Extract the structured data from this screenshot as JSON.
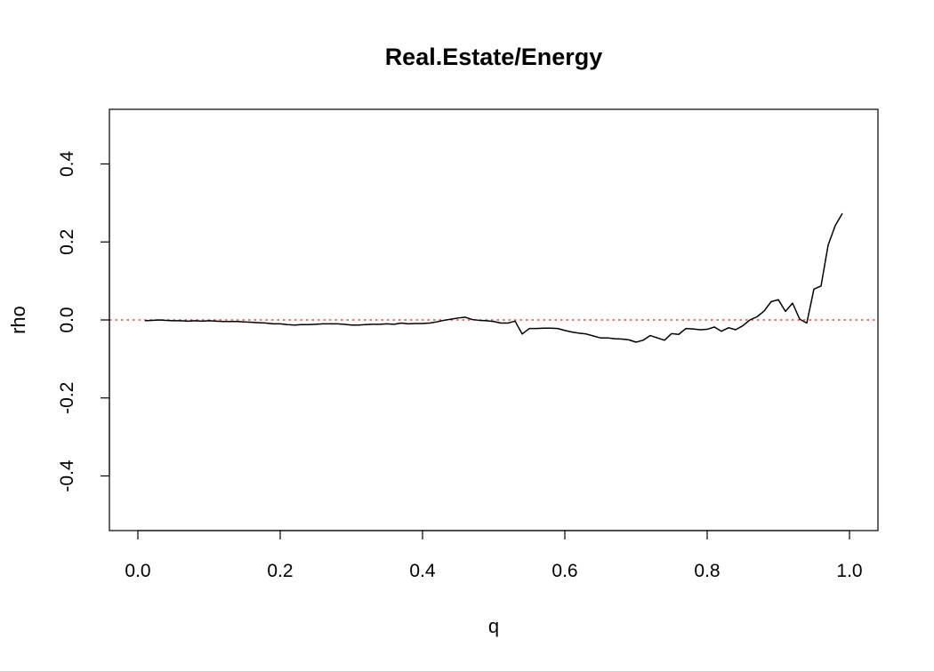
{
  "chart_data": {
    "type": "line",
    "title": "Real.Estate/Energy",
    "xlabel": "q",
    "ylabel": "rho",
    "xlim": [
      -0.04,
      1.04
    ],
    "ylim": [
      -0.54,
      0.54
    ],
    "xticks": [
      0.0,
      0.2,
      0.4,
      0.6,
      0.8,
      1.0
    ],
    "xtick_labels": [
      "0.0",
      "0.2",
      "0.4",
      "0.6",
      "0.8",
      "1.0"
    ],
    "yticks": [
      -0.4,
      -0.2,
      0.0,
      0.2,
      0.4
    ],
    "ytick_labels": [
      "-0.4",
      "-0.2",
      "0.0",
      "0.2",
      "0.4"
    ],
    "grid": false,
    "reference_line": {
      "y": 0.0,
      "color": "#e8484b",
      "style": "dotted"
    },
    "series": [
      {
        "color": "#000000",
        "x": [
          0.01,
          0.02,
          0.03,
          0.04,
          0.05,
          0.06,
          0.07,
          0.08,
          0.09,
          0.1,
          0.11,
          0.12,
          0.13,
          0.14,
          0.15,
          0.16,
          0.17,
          0.18,
          0.19,
          0.2,
          0.21,
          0.22,
          0.23,
          0.24,
          0.25,
          0.26,
          0.27,
          0.28,
          0.29,
          0.3,
          0.31,
          0.32,
          0.33,
          0.34,
          0.35,
          0.36,
          0.37,
          0.38,
          0.39,
          0.4,
          0.41,
          0.42,
          0.43,
          0.44,
          0.45,
          0.46,
          0.47,
          0.48,
          0.49,
          0.5,
          0.51,
          0.52,
          0.53,
          0.54,
          0.55,
          0.56,
          0.57,
          0.58,
          0.59,
          0.6,
          0.61,
          0.62,
          0.63,
          0.64,
          0.65,
          0.66,
          0.67,
          0.68,
          0.69,
          0.7,
          0.71,
          0.72,
          0.73,
          0.74,
          0.75,
          0.76,
          0.77,
          0.78,
          0.79,
          0.8,
          0.81,
          0.82,
          0.83,
          0.84,
          0.85,
          0.86,
          0.87,
          0.88,
          0.89,
          0.9,
          0.91,
          0.92,
          0.93,
          0.94,
          0.95,
          0.96,
          0.97,
          0.98,
          0.99
        ],
        "y": [
          -0.002,
          -0.001,
          0.0,
          -0.001,
          -0.002,
          -0.002,
          -0.003,
          -0.002,
          -0.003,
          -0.002,
          -0.003,
          -0.004,
          -0.004,
          -0.004,
          -0.005,
          -0.006,
          -0.007,
          -0.008,
          -0.01,
          -0.01,
          -0.012,
          -0.013,
          -0.012,
          -0.012,
          -0.011,
          -0.01,
          -0.01,
          -0.01,
          -0.011,
          -0.013,
          -0.013,
          -0.012,
          -0.011,
          -0.011,
          -0.01,
          -0.011,
          -0.008,
          -0.01,
          -0.009,
          -0.009,
          -0.008,
          -0.005,
          -0.001,
          0.002,
          0.005,
          0.007,
          0.001,
          -0.001,
          -0.002,
          -0.004,
          -0.008,
          -0.008,
          -0.003,
          -0.036,
          -0.022,
          -0.022,
          -0.021,
          -0.021,
          -0.022,
          -0.027,
          -0.031,
          -0.034,
          -0.036,
          -0.041,
          -0.046,
          -0.046,
          -0.048,
          -0.049,
          -0.051,
          -0.057,
          -0.052,
          -0.04,
          -0.046,
          -0.052,
          -0.035,
          -0.037,
          -0.022,
          -0.023,
          -0.025,
          -0.024,
          -0.018,
          -0.029,
          -0.02,
          -0.025,
          -0.015,
          0.0,
          0.008,
          0.023,
          0.047,
          0.052,
          0.022,
          0.043,
          0.002,
          -0.008,
          0.079,
          0.087,
          0.192,
          0.242,
          0.273
        ]
      }
    ]
  }
}
